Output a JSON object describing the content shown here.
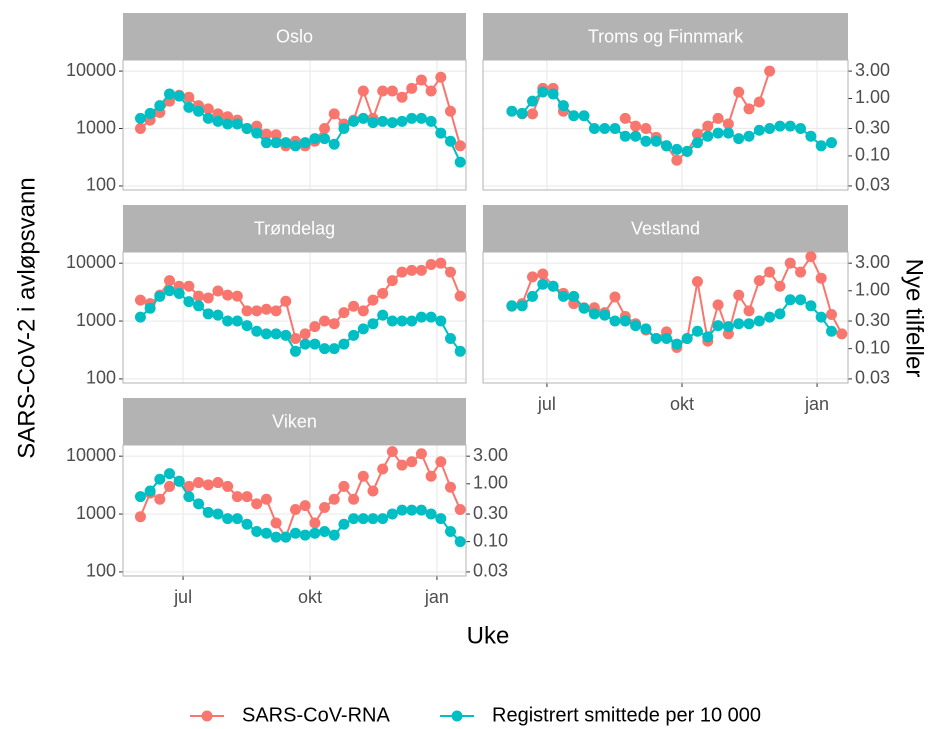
{
  "ylabel": "SARS-CoV-2 i avløpsvann",
  "y2label": "Nye tilfeller",
  "xlabel": "Uke",
  "chart_data": [
    {
      "type": "line",
      "title": "Oslo",
      "log_y": true,
      "grid": true,
      "show_y_axis": true,
      "show_y2_axis": false,
      "show_x_axis": false,
      "x": [
        0,
        1,
        2,
        3,
        4,
        5,
        6,
        7,
        8,
        9,
        10,
        11,
        12,
        13,
        14,
        15,
        16,
        17,
        18,
        19,
        20,
        21,
        22,
        23,
        24,
        25,
        26,
        27,
        28,
        29,
        30,
        31,
        32,
        33
      ],
      "xlim": [
        -1.8,
        33.6
      ],
      "xticks": [
        {
          "value": 4.4,
          "label": "jul"
        },
        {
          "value": 17.5,
          "label": "okt"
        },
        {
          "value": 30.6,
          "label": "jan"
        }
      ],
      "ylim": [
        85,
        15600
      ],
      "yticks": [
        100,
        1000,
        10000
      ],
      "y2lim": [
        0.0255,
        4.68
      ],
      "series": [
        {
          "name": "SARS-CoV-RNA",
          "color": "#F8766D",
          "values": [
            1000,
            1400,
            1900,
            3000,
            3800,
            3500,
            2500,
            2200,
            1800,
            1600,
            1400,
            1000,
            1100,
            800,
            780,
            500,
            600,
            500,
            600,
            1000,
            1800,
            1200,
            1400,
            4500,
            1500,
            4500,
            4500,
            3500,
            5000,
            7000,
            4500,
            7800,
            2000,
            500
          ]
        },
        {
          "name": "Registrert smittede per 10 000",
          "color": "#00BFC4",
          "axis": "y2",
          "values": [
            0.45,
            0.55,
            0.75,
            1.2,
            1.1,
            0.7,
            0.6,
            0.45,
            0.4,
            0.36,
            0.36,
            0.3,
            0.25,
            0.17,
            0.17,
            0.17,
            0.15,
            0.17,
            0.2,
            0.2,
            0.16,
            0.3,
            0.4,
            0.45,
            0.38,
            0.4,
            0.38,
            0.4,
            0.45,
            0.45,
            0.4,
            0.25,
            0.18,
            0.078
          ]
        }
      ]
    },
    {
      "type": "line",
      "title": "Troms og Finnmark",
      "log_y": true,
      "grid": true,
      "show_y_axis": false,
      "show_y2_axis": true,
      "show_x_axis": false,
      "x": [
        0,
        1,
        2,
        3,
        4,
        5,
        6,
        7,
        8,
        9,
        10,
        11,
        12,
        13,
        14,
        15,
        16,
        17,
        18,
        19,
        20,
        21,
        22,
        23,
        24,
        25,
        26,
        27,
        28,
        29,
        30,
        31,
        32,
        33
      ],
      "xlim": [
        -1.8,
        33.6
      ],
      "xticks": [
        {
          "value": 4.4,
          "label": "jul"
        },
        {
          "value": 17.5,
          "label": "okt"
        },
        {
          "value": 30.6,
          "label": "jan"
        }
      ],
      "ylim": [
        85,
        15600
      ],
      "yticks": [
        100,
        1000,
        10000
      ],
      "y2lim": [
        0.0255,
        4.68
      ],
      "y2ticks": [
        0.03,
        {
          "value": 0.1,
          "label": "0.10"
        },
        {
          "value": 0.3,
          "label": "0.30"
        },
        {
          "value": 1,
          "label": "1.00"
        },
        {
          "value": 3,
          "label": "3.00"
        }
      ],
      "series": [
        {
          "color": "#F8766D",
          "values": [
            null,
            null,
            1800,
            1800,
            5000,
            5000,
            2000,
            null,
            null,
            null,
            null,
            null,
            1500,
            1100,
            1000,
            700,
            500,
            280,
            400,
            800,
            1100,
            1500,
            1200,
            4300,
            2200,
            2900,
            10000,
            null,
            null,
            null,
            null,
            null,
            null,
            null
          ]
        },
        {
          "color": "#00BFC4",
          "axis": "y2",
          "values": [
            null,
            0.6,
            0.55,
            0.9,
            1.3,
            1.2,
            0.75,
            0.5,
            0.5,
            0.3,
            0.3,
            0.3,
            0.22,
            0.22,
            0.18,
            0.18,
            0.15,
            0.13,
            0.12,
            0.17,
            0.22,
            0.25,
            0.25,
            0.2,
            0.22,
            0.28,
            0.3,
            0.33,
            0.33,
            0.3,
            0.22,
            0.15,
            0.17,
            null
          ]
        }
      ]
    },
    {
      "type": "line",
      "title": "Trøndelag",
      "log_y": true,
      "grid": true,
      "show_y_axis": true,
      "show_y2_axis": false,
      "show_x_axis": false,
      "x": [
        0,
        1,
        2,
        3,
        4,
        5,
        6,
        7,
        8,
        9,
        10,
        11,
        12,
        13,
        14,
        15,
        16,
        17,
        18,
        19,
        20,
        21,
        22,
        23,
        24,
        25,
        26,
        27,
        28,
        29,
        30,
        31,
        32,
        33
      ],
      "xlim": [
        -1.8,
        33.6
      ],
      "xticks": [
        {
          "value": 4.4,
          "label": "jul"
        },
        {
          "value": 17.5,
          "label": "okt"
        },
        {
          "value": 30.6,
          "label": "jan"
        }
      ],
      "ylim": [
        85,
        15600
      ],
      "yticks": [
        100,
        1000,
        10000
      ],
      "y2lim": [
        0.0255,
        4.68
      ],
      "series": [
        {
          "color": "#F8766D",
          "values": [
            2300,
            2000,
            2800,
            5000,
            4000,
            4000,
            2700,
            2500,
            3300,
            2800,
            2700,
            1500,
            1500,
            1600,
            1500,
            2200,
            500,
            600,
            800,
            1000,
            900,
            1400,
            1800,
            1500,
            2300,
            3000,
            5000,
            7000,
            7500,
            7500,
            9500,
            10000,
            7000,
            2700
          ]
        },
        {
          "color": "#00BFC4",
          "axis": "y2",
          "values": [
            0.35,
            0.5,
            0.8,
            1.0,
            0.9,
            0.65,
            0.55,
            0.4,
            0.38,
            0.3,
            0.3,
            0.25,
            0.2,
            0.18,
            0.18,
            0.17,
            0.09,
            0.12,
            0.12,
            0.1,
            0.1,
            0.12,
            0.17,
            0.22,
            0.27,
            0.38,
            0.3,
            0.3,
            0.3,
            0.35,
            0.35,
            0.3,
            0.15,
            0.09
          ]
        }
      ]
    },
    {
      "type": "line",
      "title": "Vestland",
      "log_y": true,
      "grid": true,
      "show_y_axis": false,
      "show_y2_axis": true,
      "show_x_axis": true,
      "x": [
        0,
        1,
        2,
        3,
        4,
        5,
        6,
        7,
        8,
        9,
        10,
        11,
        12,
        13,
        14,
        15,
        16,
        17,
        18,
        19,
        20,
        21,
        22,
        23,
        24,
        25,
        26,
        27,
        28,
        29,
        30,
        31,
        32,
        33
      ],
      "xlim": [
        -1.8,
        33.6
      ],
      "xticks": [
        {
          "value": 4.4,
          "label": "jul"
        },
        {
          "value": 17.5,
          "label": "okt"
        },
        {
          "value": 30.6,
          "label": "jan"
        }
      ],
      "ylim": [
        85,
        15600
      ],
      "yticks": [
        100,
        1000,
        10000
      ],
      "y2lim": [
        0.0255,
        4.68
      ],
      "y2ticks": [
        0.03,
        {
          "value": 0.1,
          "label": "0.10"
        },
        {
          "value": 0.3,
          "label": "0.30"
        },
        {
          "value": 1,
          "label": "1.00"
        },
        {
          "value": 3,
          "label": "3.00"
        }
      ],
      "series": [
        {
          "color": "#F8766D",
          "values": [
            null,
            1800,
            2000,
            5800,
            6500,
            4000,
            3000,
            2000,
            1700,
            1700,
            1400,
            2600,
            1200,
            900,
            700,
            500,
            650,
            350,
            500,
            4800,
            450,
            1900,
            600,
            2800,
            1500,
            5000,
            7000,
            4000,
            10000,
            7000,
            13000,
            5500,
            1300,
            600
          ]
        },
        {
          "color": "#00BFC4",
          "axis": "y2",
          "values": [
            null,
            0.55,
            0.55,
            0.8,
            1.3,
            1.2,
            0.8,
            0.8,
            0.5,
            0.4,
            0.38,
            0.3,
            0.3,
            0.25,
            0.22,
            0.15,
            0.15,
            0.12,
            0.15,
            0.2,
            0.16,
            0.25,
            0.24,
            0.27,
            0.27,
            0.3,
            0.35,
            0.4,
            0.7,
            0.7,
            0.55,
            0.35,
            0.2,
            null
          ]
        }
      ]
    },
    {
      "type": "line",
      "title": "Viken",
      "log_y": true,
      "grid": true,
      "show_y_axis": true,
      "show_y2_axis": true,
      "show_x_axis": true,
      "x": [
        0,
        1,
        2,
        3,
        4,
        5,
        6,
        7,
        8,
        9,
        10,
        11,
        12,
        13,
        14,
        15,
        16,
        17,
        18,
        19,
        20,
        21,
        22,
        23,
        24,
        25,
        26,
        27,
        28,
        29,
        30,
        31,
        32,
        33
      ],
      "xlim": [
        -1.8,
        33.6
      ],
      "xticks": [
        {
          "value": 4.4,
          "label": "jul"
        },
        {
          "value": 17.5,
          "label": "okt"
        },
        {
          "value": 30.6,
          "label": "jan"
        }
      ],
      "ylim": [
        85,
        15600
      ],
      "yticks": [
        100,
        1000,
        10000
      ],
      "y2lim": [
        0.0255,
        4.68
      ],
      "y2ticks": [
        0.03,
        {
          "value": 0.1,
          "label": "0.10"
        },
        {
          "value": 0.3,
          "label": "0.30"
        },
        {
          "value": 1,
          "label": "1.00"
        },
        {
          "value": 3,
          "label": "3.00"
        }
      ],
      "series": [
        {
          "color": "#F8766D",
          "values": [
            900,
            2300,
            1800,
            3000,
            3700,
            3000,
            3500,
            3200,
            3500,
            3000,
            2000,
            2000,
            1500,
            1800,
            700,
            400,
            1200,
            1400,
            700,
            1300,
            1800,
            3000,
            1800,
            4500,
            2500,
            6000,
            12000,
            7000,
            8000,
            11000,
            4500,
            8000,
            2900,
            1200
          ]
        },
        {
          "color": "#00BFC4",
          "axis": "y2",
          "values": [
            0.6,
            0.75,
            1.2,
            1.5,
            1.1,
            0.6,
            0.45,
            0.32,
            0.3,
            0.25,
            0.25,
            0.2,
            0.15,
            0.14,
            0.12,
            0.12,
            0.14,
            0.13,
            0.14,
            0.15,
            0.13,
            0.2,
            0.25,
            0.25,
            0.25,
            0.25,
            0.3,
            0.35,
            0.35,
            0.35,
            0.3,
            0.25,
            0.15,
            0.1
          ]
        }
      ]
    }
  ]
}
